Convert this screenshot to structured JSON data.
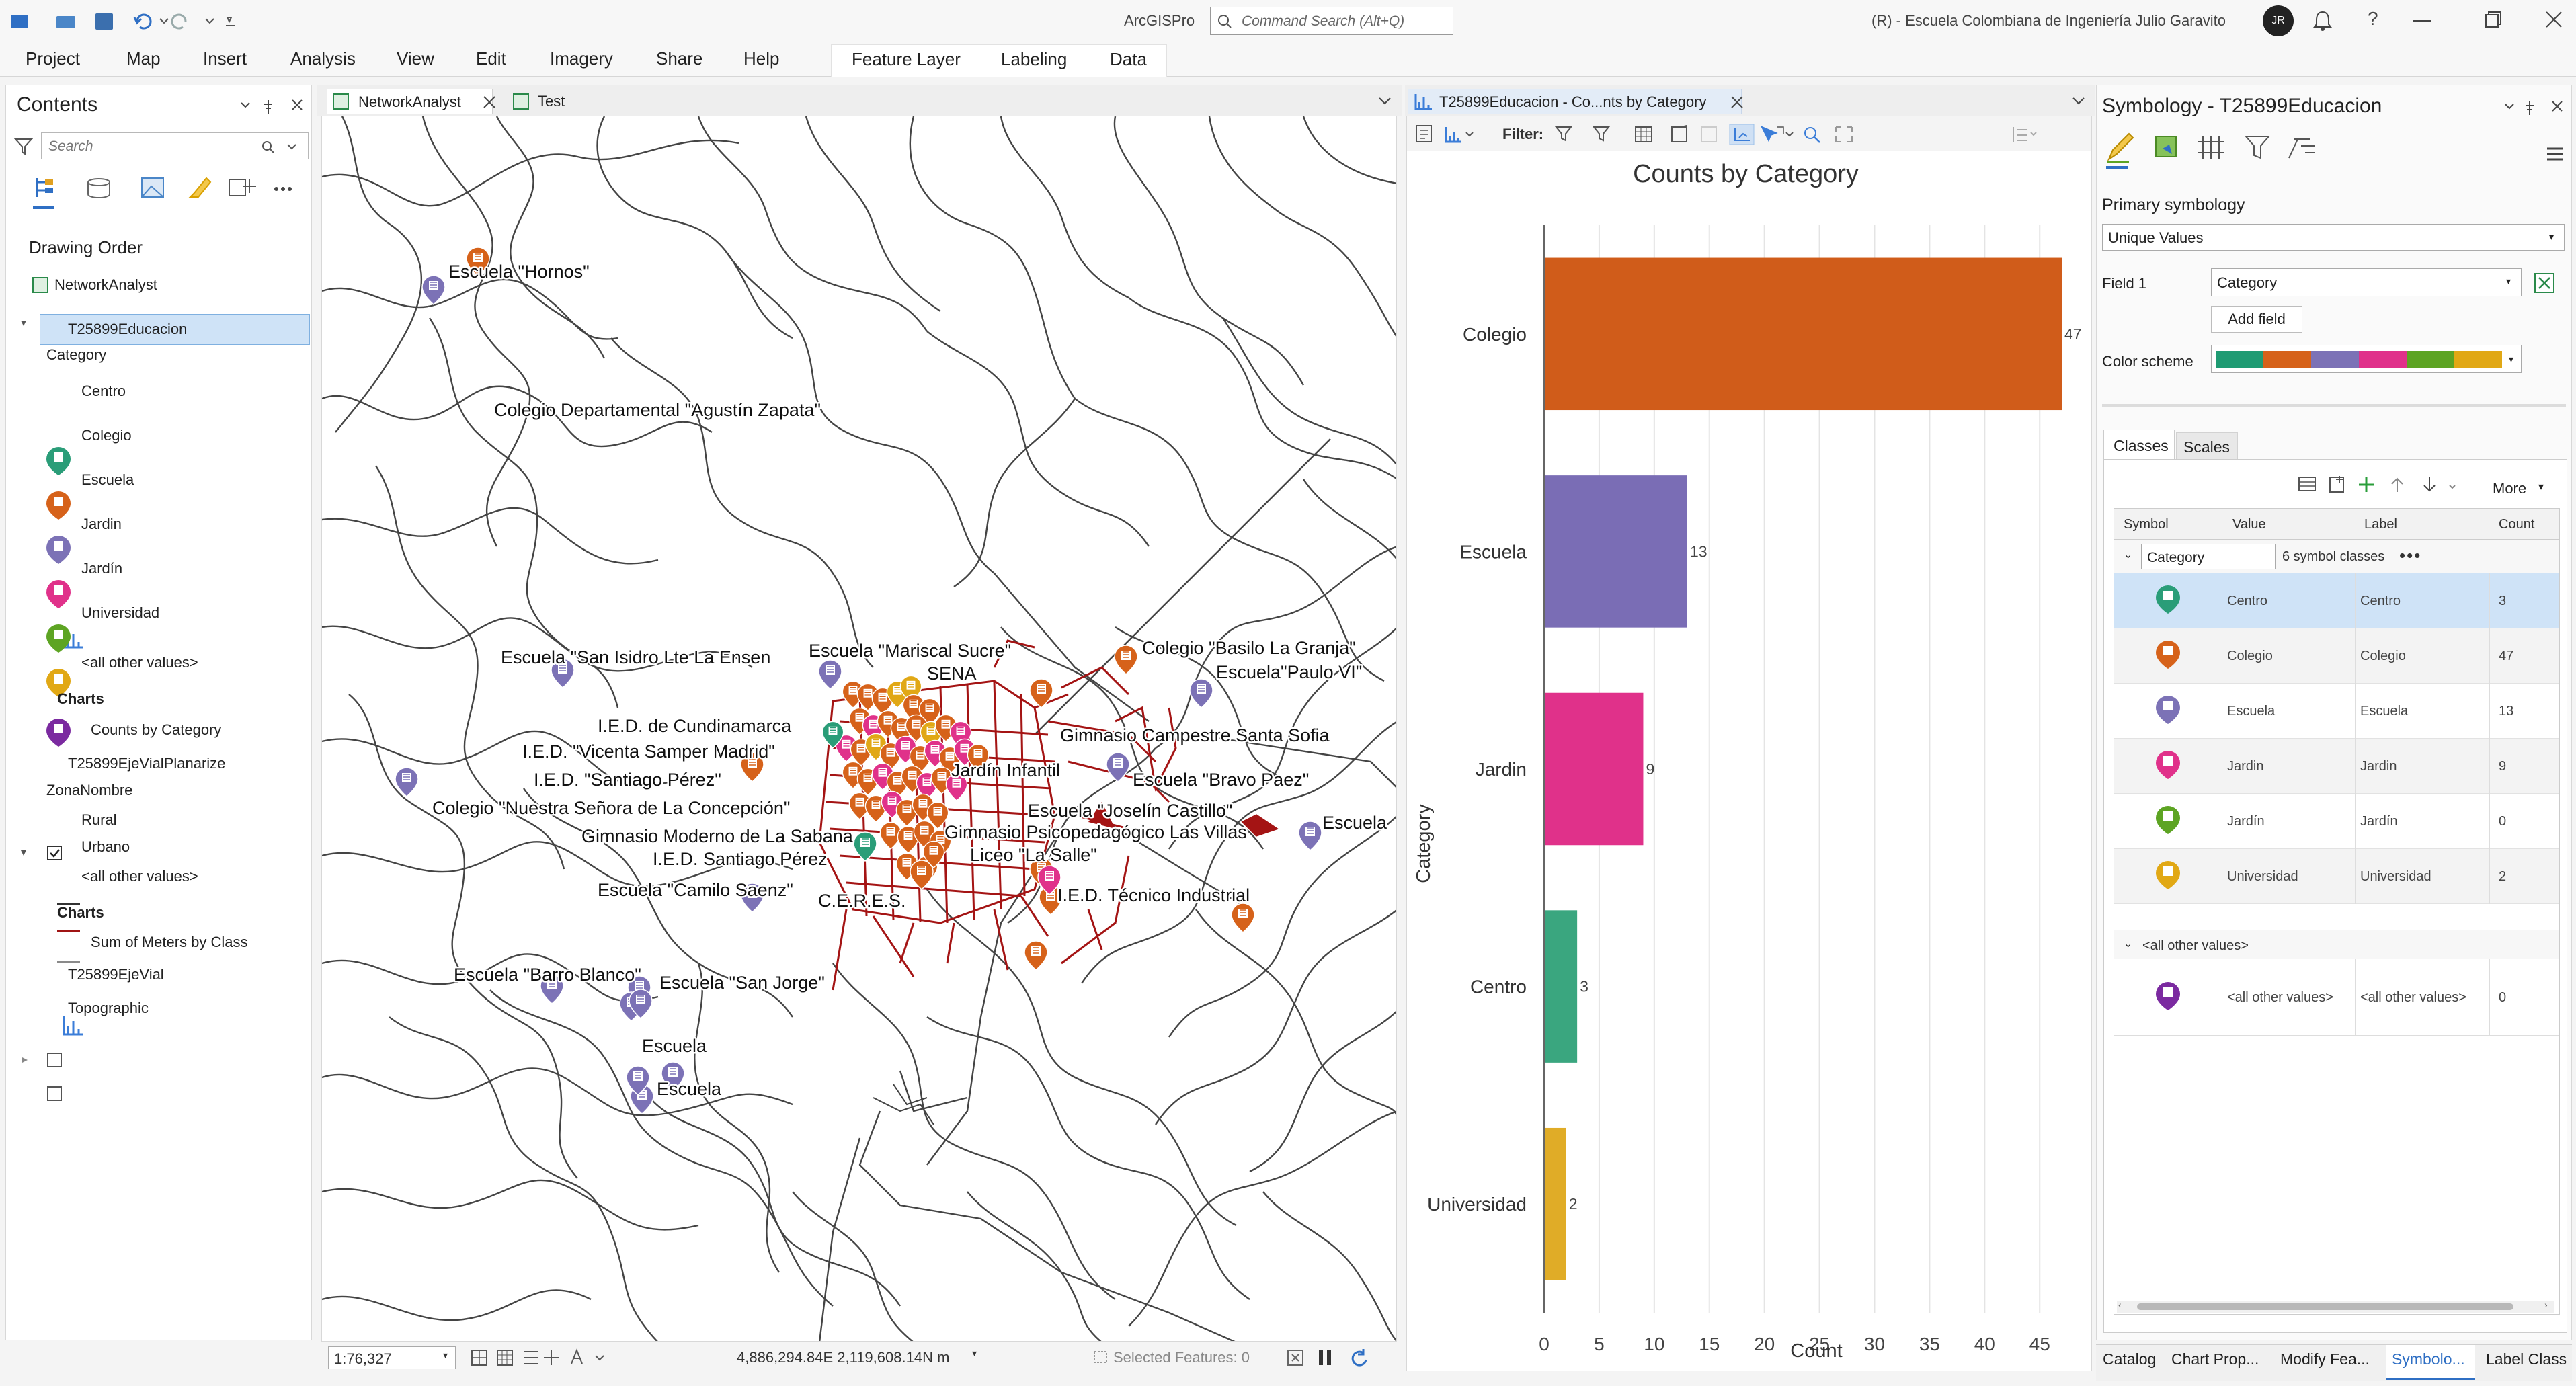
{
  "app": {
    "title": "ArcGISPro",
    "search_placeholder": "Command Search (Alt+Q)",
    "user_info": "(R) - Escuela Colombiana de Ingeniería Julio Garavito",
    "avatar_initials": "JR"
  },
  "ribbon": {
    "tabs": [
      "Project",
      "Map",
      "Insert",
      "Analysis",
      "View",
      "Edit",
      "Imagery",
      "Share",
      "Help"
    ],
    "context_tabs": [
      "Feature Layer",
      "Labeling",
      "Data"
    ]
  },
  "contents": {
    "title": "Contents",
    "search_placeholder": "Search",
    "drawing_order": "Drawing Order",
    "map_name": "NetworkAnalyst",
    "layer1": {
      "name": "T25899Educacion",
      "field": "Category",
      "classes": [
        "Centro",
        "Colegio",
        "Escuela",
        "Jardin",
        "Jardín",
        "Universidad",
        "<all other values>"
      ],
      "charts_heading": "Charts",
      "chart": "Counts by Category"
    },
    "layer2": {
      "name": "T25899EjeVialPlanarize",
      "field": "ZonaNombre",
      "classes": [
        "Rural",
        "Urbano",
        "<all other values>"
      ],
      "charts_heading": "Charts",
      "chart": "Sum of Meters by Class"
    },
    "layer3": {
      "name": "T25899EjeVial"
    },
    "layer4": {
      "name": "Topographic"
    }
  },
  "map_tabs": [
    "NetworkAnalyst",
    "Test"
  ],
  "map_labels": [
    "Escuela \"Hornos\"",
    "Colegio Departamental \"Agustín Zapata\"",
    "Escuela \"San Isidro Lte La Ensen",
    "Escuela \"Mariscal Sucre\"",
    "SENA",
    "Colegio \"Basilo La Granja\"",
    "Escuela\"Paulo VI\"",
    "I.E.D. de Cundinamarca",
    "I.E.D. \"Vicenta Samper Madrid\"",
    "I.E.D. \"Santiago Pérez\"",
    "Colegio \"Nuestra Señora de La Concepción\"",
    "Gimnasio Moderno de La Sabana",
    "I.E.D. Santiago Pérez",
    "Escuela \"Camilo Saenz\"",
    "C.E.R.E.S.",
    "Gimnasio Campestre Santa Sofia",
    "Jardín Infantil",
    "Escuela \"Bravo Paez\"",
    "Escuela \"Joselín Castillo\"",
    "Gimnasio Psicopedagógico Las Villas",
    "Liceo \"La Salle\"",
    "Escuela",
    "I.E.D. Técnico Industrial",
    "Escuela \"Barro Blanco\"",
    "Escuela \"San Jorge\"",
    "Escuela",
    "Escuela"
  ],
  "map_status": {
    "scale": "1:76,327",
    "coords": "4,886,294.84E 2,119,608.14N m",
    "selected": "Selected Features: 0"
  },
  "chart_tab": {
    "title": "T25899Educacion - Co...nts by Category",
    "filter_label": "Filter:"
  },
  "chart_data": {
    "type": "bar",
    "orientation": "horizontal",
    "title": "Counts by Category",
    "xlabel": "Count",
    "ylabel": "Category",
    "categories": [
      "Colegio",
      "Escuela",
      "Jardin",
      "Centro",
      "Universidad"
    ],
    "values": [
      47,
      13,
      9,
      3,
      2
    ],
    "colors": [
      "#d05c1a",
      "#7a6db5",
      "#e0318a",
      "#3aa67f",
      "#e0ac27"
    ],
    "xlim": [
      0,
      47
    ],
    "xticks": [
      0,
      5,
      10,
      15,
      20,
      25,
      30,
      35,
      40,
      45
    ],
    "grid": true
  },
  "symbology": {
    "title": "Symbology - T25899Educacion",
    "primary": "Primary symbology",
    "method": "Unique Values",
    "field_label": "Field 1",
    "field_value": "Category",
    "add_field": "Add field",
    "color_scheme_label": "Color scheme",
    "scheme_colors": [
      "#1f9b73",
      "#d6621a",
      "#7c72b6",
      "#e0318a",
      "#5da423",
      "#e1a815"
    ],
    "tabs": [
      "Classes",
      "Scales"
    ],
    "more": "More",
    "columns": [
      "Symbol",
      "Value",
      "Label",
      "Count"
    ],
    "group_field": "Category",
    "group_info": "6 symbol classes",
    "rows": [
      {
        "value": "Centro",
        "label": "Centro",
        "count": "3",
        "color": "#2a9d78"
      },
      {
        "value": "Colegio",
        "label": "Colegio",
        "count": "47",
        "color": "#d6621a"
      },
      {
        "value": "Escuela",
        "label": "Escuela",
        "count": "13",
        "color": "#7c72b6"
      },
      {
        "value": "Jardin",
        "label": "Jardin",
        "count": "9",
        "color": "#e0318a"
      },
      {
        "value": "Jardín",
        "label": "Jardín",
        "count": "0",
        "color": "#5da423"
      },
      {
        "value": "Universidad",
        "label": "Universidad",
        "count": "2",
        "color": "#e1a815"
      }
    ],
    "other_heading": "<all other values>",
    "other_row": {
      "value": "<all other values>",
      "label": "<all other values>",
      "count": "0",
      "color": "#7b2aa0"
    }
  },
  "bottom_tabs": [
    "Catalog",
    "Chart Prop...",
    "Modify Fea...",
    "Symbolo...",
    "Label Class"
  ]
}
